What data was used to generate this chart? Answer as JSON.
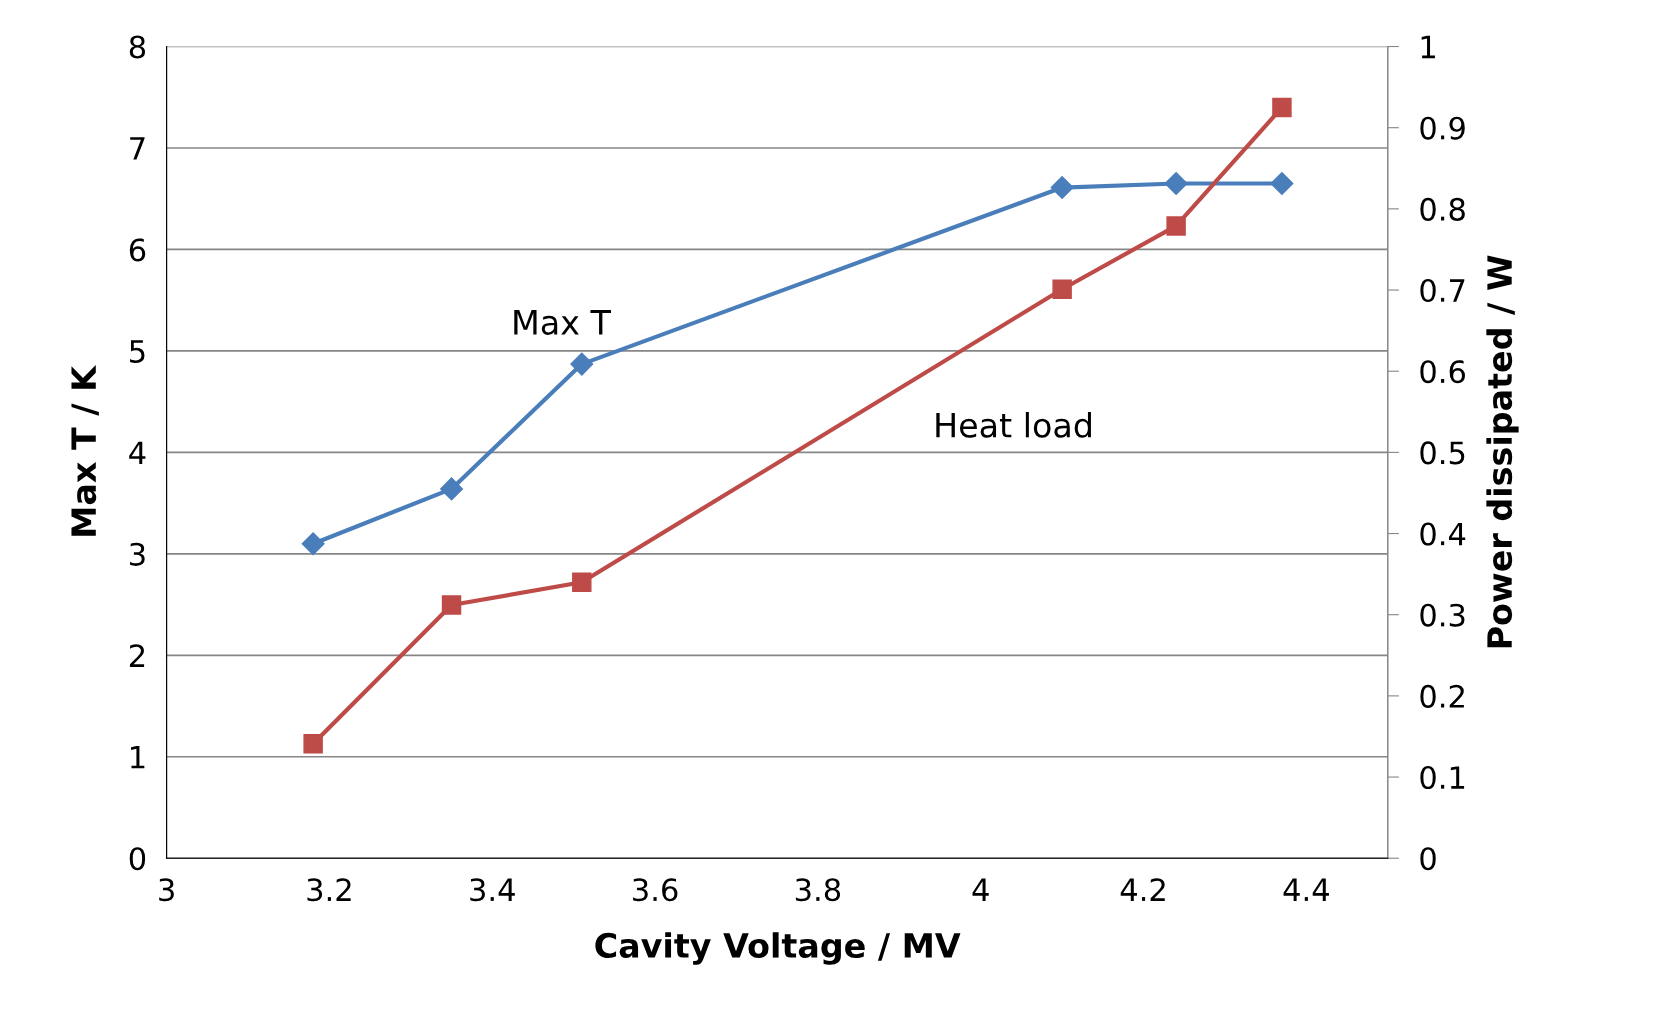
{
  "chart_data": {
    "type": "line",
    "xlabel": "Cavity Voltage / MV",
    "ylabel": "Max T / K",
    "y2label": "Power dissipated / W",
    "x": [
      3.18,
      3.35,
      3.51,
      4.1,
      4.24,
      4.37
    ],
    "series": [
      {
        "name": "Max T",
        "color": "#4a7ebb",
        "marker": "diamond",
        "values": [
          3.1,
          3.64,
          4.87,
          6.61,
          6.65,
          6.65
        ]
      },
      {
        "name": "Heat load",
        "color": "#be4b48",
        "marker": "square",
        "axis": "y2",
        "values": [
          0.141,
          0.312,
          0.34,
          0.701,
          0.779,
          0.925
        ]
      }
    ],
    "xlim": [
      3,
      4.5
    ],
    "xticks": [
      3,
      3.2,
      3.4,
      3.6,
      3.8,
      4,
      4.2,
      4.4
    ],
    "ylim": [
      0,
      8
    ],
    "yticks": [
      0,
      1,
      2,
      3,
      4,
      5,
      6,
      7,
      8
    ],
    "y2lim": [
      0,
      1
    ],
    "y2ticks": [
      0,
      0.1,
      0.2,
      0.3,
      0.4,
      0.5,
      0.6,
      0.7,
      0.8,
      0.9,
      1
    ],
    "grid": "y",
    "line_style": "solid"
  }
}
